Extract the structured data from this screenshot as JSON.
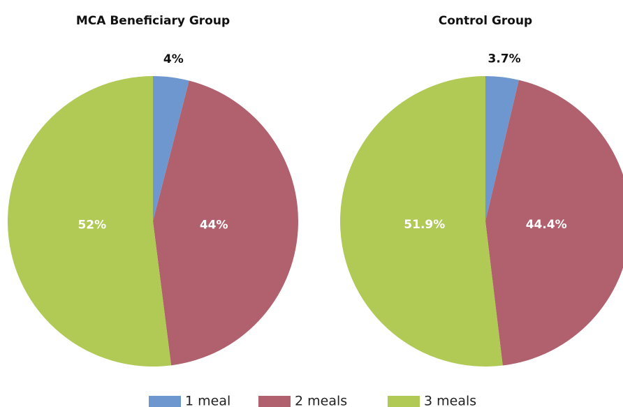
{
  "legend": {
    "names": [
      "1 meal",
      "2 meals",
      "3 meals"
    ],
    "colors": [
      "#6f97cf",
      "#b0616d",
      "#b1c955"
    ]
  },
  "chart_data": [
    {
      "type": "pie",
      "title": "MCA Beneficiary Group",
      "values": [
        4,
        44,
        52
      ],
      "value_labels": [
        "4%",
        "44%",
        "52%"
      ]
    },
    {
      "type": "pie",
      "title": "Control Group",
      "values": [
        3.7,
        44.4,
        51.9
      ],
      "value_labels": [
        "3.7%",
        "44.4%",
        "51.9%"
      ]
    }
  ]
}
